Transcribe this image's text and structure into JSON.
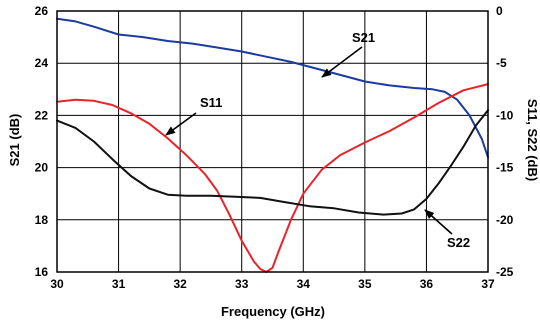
{
  "chart_data": {
    "type": "line",
    "xlabel": "Frequency (GHz)",
    "ylabel_left": "S21 (dB)",
    "ylabel_right": "S11, S22 (dB)",
    "xlim": [
      30,
      37
    ],
    "ylim_left": [
      16,
      26
    ],
    "ylim_right": [
      -25,
      0
    ],
    "x_ticks": [
      30,
      31,
      32,
      33,
      34,
      35,
      36,
      37
    ],
    "y_ticks_left": [
      16,
      18,
      20,
      22,
      24,
      26
    ],
    "y_ticks_right": [
      -25,
      -20,
      -15,
      -10,
      -5,
      0
    ],
    "grid": true,
    "series": [
      {
        "name": "S21",
        "axis": "left",
        "color": "#1c3b9e",
        "x": [
          30,
          30.3,
          30.6,
          31,
          31.4,
          31.8,
          32.2,
          32.6,
          33,
          33.4,
          33.8,
          34.2,
          34.6,
          35,
          35.4,
          35.8,
          36.1,
          36.3,
          36.5,
          36.7,
          36.9,
          37
        ],
        "y": [
          25.7,
          25.6,
          25.4,
          25.1,
          25.0,
          24.85,
          24.75,
          24.6,
          24.45,
          24.25,
          24.05,
          23.8,
          23.55,
          23.3,
          23.15,
          23.05,
          23.0,
          22.9,
          22.6,
          22.0,
          21.1,
          20.4
        ]
      },
      {
        "name": "S11",
        "axis": "right",
        "color": "#e8242a",
        "x": [
          30,
          30.3,
          30.6,
          30.9,
          31.2,
          31.5,
          31.8,
          32.1,
          32.4,
          32.6,
          32.8,
          33.0,
          33.2,
          33.3,
          33.4,
          33.5,
          33.6,
          33.8,
          34.0,
          34.3,
          34.6,
          35.0,
          35.4,
          35.8,
          36.2,
          36.6,
          37
        ],
        "y": [
          -8.7,
          -8.5,
          -8.6,
          -9.0,
          -9.8,
          -10.8,
          -12.2,
          -13.8,
          -15.6,
          -17.2,
          -19.5,
          -22.0,
          -24.0,
          -24.7,
          -25.0,
          -24.6,
          -23.0,
          -20.0,
          -17.5,
          -15.2,
          -13.8,
          -12.6,
          -11.5,
          -10.2,
          -8.8,
          -7.6,
          -7.0
        ]
      },
      {
        "name": "S22",
        "axis": "right",
        "color": "#111111",
        "x": [
          30,
          30.3,
          30.6,
          30.9,
          31.2,
          31.5,
          31.8,
          32.1,
          32.5,
          32.9,
          33.3,
          33.7,
          34.1,
          34.5,
          34.9,
          35.3,
          35.6,
          35.8,
          36.0,
          36.2,
          36.4,
          36.6,
          36.8,
          37
        ],
        "y": [
          -10.5,
          -11.2,
          -12.5,
          -14.2,
          -15.8,
          -17.0,
          -17.6,
          -17.7,
          -17.7,
          -17.8,
          -17.9,
          -18.3,
          -18.7,
          -18.9,
          -19.3,
          -19.5,
          -19.4,
          -19.0,
          -18.0,
          -16.5,
          -14.8,
          -13.0,
          -11.0,
          -9.5
        ]
      }
    ],
    "annotations": [
      {
        "text": "S21",
        "series": "S21"
      },
      {
        "text": "S11",
        "series": "S11"
      },
      {
        "text": "S22",
        "series": "S22"
      }
    ]
  }
}
